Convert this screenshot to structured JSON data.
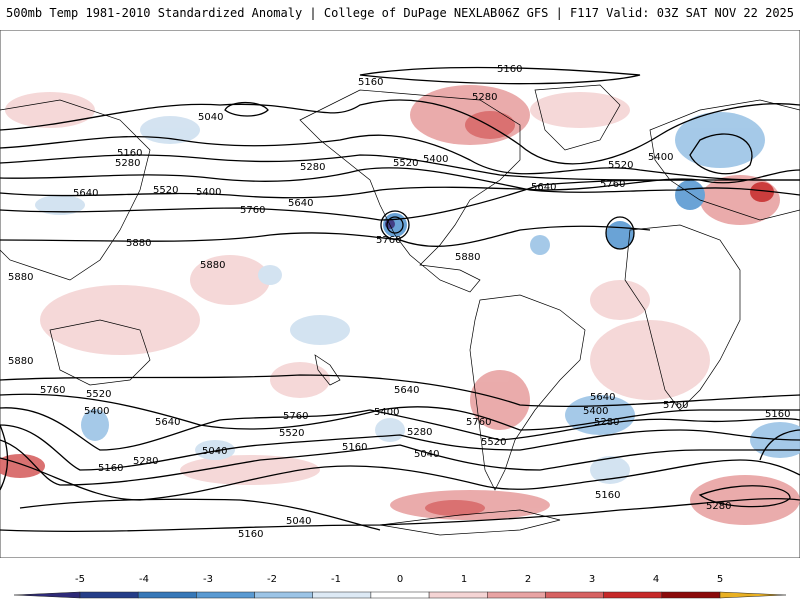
{
  "header": {
    "title": "500mb Temp 1981-2010 Standardized Anomaly | College of DuPage NEXLAB",
    "run_info": "06Z GFS | F117 Valid: 03Z SAT NOV 22 2025"
  },
  "colors": {
    "map_border": "#444444",
    "contour": "#000000",
    "land_border": "#000000"
  },
  "contour_labels": [
    "5160",
    "5040",
    "5160",
    "5280",
    "5400",
    "5520",
    "5640",
    "5760",
    "5880",
    "5280",
    "5400",
    "5520",
    "5640",
    "5760",
    "5160",
    "5280",
    "5400",
    "5520",
    "5640",
    "5760",
    "5880",
    "5880",
    "5880",
    "5880",
    "5760",
    "5520",
    "5400",
    "5640",
    "5760",
    "5280",
    "5160",
    "5040",
    "5160",
    "5280",
    "5160",
    "5400",
    "5520",
    "5640",
    "5760",
    "5040",
    "5160",
    "5280",
    "5400",
    "5520",
    "5640",
    "5760",
    "5160",
    "5280",
    "5040"
  ],
  "colorbar": {
    "ticks": [
      "-5",
      "-4",
      "-3",
      "-2",
      "-1",
      "0",
      "1",
      "2",
      "3",
      "4",
      "5"
    ],
    "colors": [
      "#2e2a78",
      "#253d88",
      "#3778b8",
      "#5a9ad2",
      "#9cc4e6",
      "#dde9f4",
      "#ffffff",
      "#f4d4d4",
      "#e8a3a3",
      "#d66262",
      "#c62929",
      "#8b0b0b",
      "#e9b022"
    ]
  }
}
